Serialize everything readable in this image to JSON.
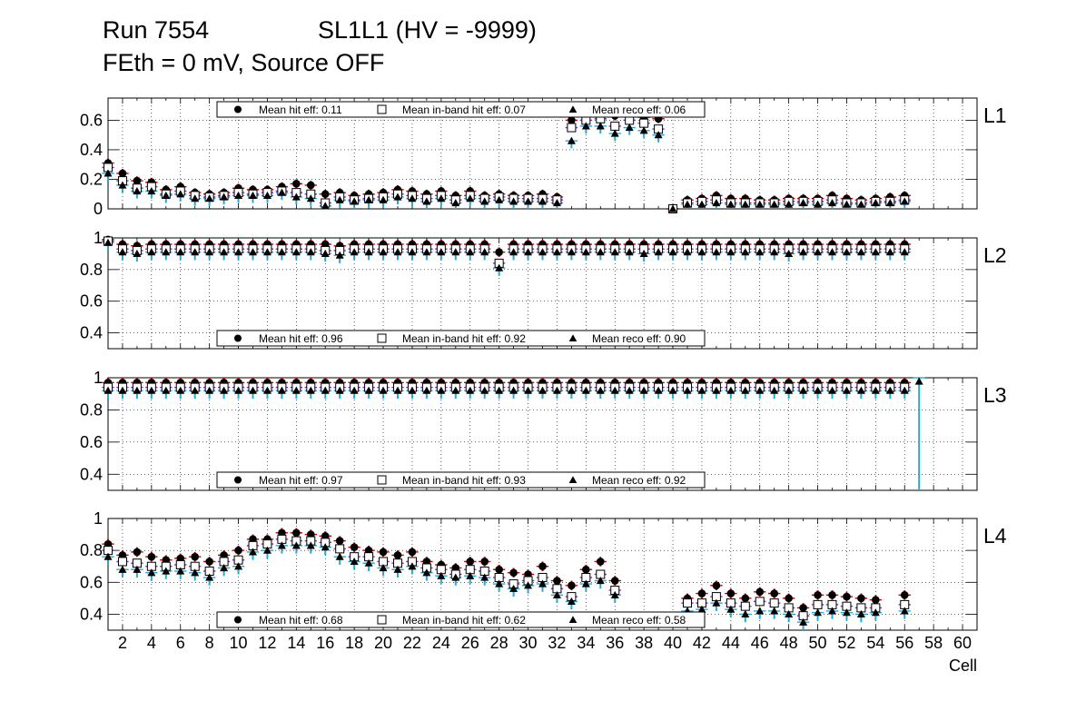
{
  "title": {
    "run": "Run 7554",
    "sl": "SL1L1 (HV = -9999)",
    "line2": "FEth = 0 mV, Source OFF"
  },
  "colors": {
    "hit_error": "#cc0000",
    "inband_error": "#7733cc",
    "reco_error": "#22aadd",
    "marker": "#000000",
    "grid": "#000000"
  },
  "chart_data": {
    "type": "scatter",
    "xlabel": "Cell",
    "xlim": [
      1,
      61
    ],
    "xticks": [
      2,
      4,
      6,
      8,
      10,
      12,
      14,
      16,
      18,
      20,
      22,
      24,
      26,
      28,
      30,
      32,
      34,
      36,
      38,
      40,
      42,
      44,
      46,
      48,
      50,
      52,
      54,
      56,
      58,
      60
    ],
    "series_names": [
      "Mean hit  eff",
      "Mean in-band hit eff",
      "Mean reco eff"
    ],
    "panels": [
      {
        "layer": "L1",
        "ylim": [
          0,
          0.75
        ],
        "yticks": [
          {
            "v": 0,
            "label": "0"
          },
          {
            "v": 0.2,
            "label": "0.2"
          },
          {
            "v": 0.4,
            "label": "0.4"
          },
          {
            "v": 0.6,
            "label": "0.6"
          }
        ],
        "legend_pos": "top",
        "legend": [
          "Mean hit  eff: 0.11",
          "Mean in-band hit eff: 0.07",
          "Mean reco eff: 0.06"
        ],
        "cells": [
          1,
          2,
          3,
          4,
          5,
          6,
          7,
          8,
          9,
          10,
          11,
          12,
          13,
          14,
          15,
          16,
          17,
          18,
          19,
          20,
          21,
          22,
          23,
          24,
          25,
          26,
          27,
          28,
          29,
          30,
          31,
          32,
          33,
          34,
          35,
          36,
          37,
          38,
          39,
          40,
          41,
          42,
          43,
          44,
          45,
          46,
          47,
          48,
          49,
          50,
          51,
          52,
          53,
          54,
          55,
          56
        ],
        "hit": [
          0.31,
          0.24,
          0.19,
          0.18,
          0.13,
          0.15,
          0.11,
          0.1,
          0.11,
          0.14,
          0.13,
          0.13,
          0.15,
          0.17,
          0.16,
          0.1,
          0.11,
          0.09,
          0.1,
          0.11,
          0.13,
          0.12,
          0.1,
          0.12,
          0.09,
          0.12,
          0.09,
          0.1,
          0.09,
          0.09,
          0.1,
          0.08,
          0.6,
          0.63,
          0.64,
          0.63,
          0.64,
          0.62,
          0.61,
          0.0,
          0.06,
          0.07,
          0.09,
          0.07,
          0.07,
          0.06,
          0.06,
          0.07,
          0.07,
          0.07,
          0.09,
          0.07,
          0.06,
          0.07,
          0.08,
          0.09
        ],
        "inband": [
          0.28,
          0.19,
          0.14,
          0.15,
          0.1,
          0.12,
          0.09,
          0.08,
          0.09,
          0.11,
          0.1,
          0.11,
          0.12,
          0.11,
          0.1,
          0.04,
          0.08,
          0.06,
          0.07,
          0.08,
          0.1,
          0.09,
          0.07,
          0.09,
          0.06,
          0.09,
          0.07,
          0.08,
          0.07,
          0.07,
          0.07,
          0.06,
          0.55,
          0.6,
          0.61,
          0.56,
          0.6,
          0.58,
          0.54,
          0.0,
          0.04,
          0.05,
          0.06,
          0.04,
          0.04,
          0.04,
          0.04,
          0.05,
          0.05,
          0.05,
          0.06,
          0.04,
          0.04,
          0.05,
          0.05,
          0.06
        ],
        "reco": [
          0.24,
          0.16,
          0.12,
          0.12,
          0.09,
          0.1,
          0.07,
          0.07,
          0.08,
          0.09,
          0.09,
          0.09,
          0.11,
          0.08,
          0.07,
          0.02,
          0.06,
          0.05,
          0.06,
          0.06,
          0.08,
          0.07,
          0.05,
          0.07,
          0.04,
          0.07,
          0.05,
          0.06,
          0.05,
          0.05,
          0.05,
          0.04,
          0.46,
          0.56,
          0.56,
          0.51,
          0.55,
          0.53,
          0.5,
          0.0,
          0.03,
          0.03,
          0.04,
          0.03,
          0.03,
          0.03,
          0.03,
          0.03,
          0.04,
          0.03,
          0.04,
          0.03,
          0.03,
          0.04,
          0.04,
          0.05
        ]
      },
      {
        "layer": "L2",
        "ylim": [
          0.3,
          1.0
        ],
        "yticks": [
          {
            "v": 0.4,
            "label": "0.4"
          },
          {
            "v": 0.6,
            "label": "0.6"
          },
          {
            "v": 0.8,
            "label": "0.8"
          },
          {
            "v": 1.0,
            "label": "1"
          }
        ],
        "legend_pos": "bottom",
        "legend": [
          "Mean hit  eff: 0.96",
          "Mean in-band hit eff: 0.92",
          "Mean reco eff: 0.90"
        ],
        "cells": [
          1,
          2,
          3,
          4,
          5,
          6,
          7,
          8,
          9,
          10,
          11,
          12,
          13,
          14,
          15,
          16,
          17,
          18,
          19,
          20,
          21,
          22,
          23,
          24,
          25,
          26,
          27,
          28,
          29,
          30,
          31,
          32,
          33,
          34,
          35,
          36,
          37,
          38,
          39,
          40,
          41,
          42,
          43,
          44,
          45,
          46,
          47,
          48,
          49,
          50,
          51,
          52,
          53,
          54,
          55,
          56
        ],
        "hit": [
          0.99,
          0.96,
          0.95,
          0.96,
          0.96,
          0.96,
          0.96,
          0.96,
          0.96,
          0.96,
          0.96,
          0.96,
          0.96,
          0.96,
          0.96,
          0.96,
          0.95,
          0.96,
          0.96,
          0.96,
          0.96,
          0.96,
          0.96,
          0.96,
          0.96,
          0.96,
          0.96,
          0.91,
          0.96,
          0.96,
          0.96,
          0.96,
          0.96,
          0.96,
          0.96,
          0.96,
          0.96,
          0.96,
          0.96,
          0.96,
          0.96,
          0.96,
          0.96,
          0.96,
          0.96,
          0.96,
          0.96,
          0.96,
          0.96,
          0.96,
          0.96,
          0.96,
          0.96,
          0.96,
          0.96,
          0.96
        ],
        "inband": [
          0.98,
          0.93,
          0.92,
          0.93,
          0.93,
          0.93,
          0.93,
          0.93,
          0.93,
          0.93,
          0.93,
          0.93,
          0.93,
          0.93,
          0.93,
          0.92,
          0.92,
          0.93,
          0.93,
          0.93,
          0.93,
          0.93,
          0.93,
          0.93,
          0.93,
          0.93,
          0.93,
          0.84,
          0.93,
          0.93,
          0.93,
          0.93,
          0.93,
          0.93,
          0.93,
          0.93,
          0.93,
          0.93,
          0.93,
          0.93,
          0.93,
          0.93,
          0.93,
          0.93,
          0.93,
          0.93,
          0.93,
          0.93,
          0.93,
          0.93,
          0.93,
          0.93,
          0.93,
          0.93,
          0.93,
          0.93
        ],
        "reco": [
          0.97,
          0.91,
          0.9,
          0.91,
          0.91,
          0.91,
          0.91,
          0.91,
          0.91,
          0.91,
          0.91,
          0.91,
          0.91,
          0.91,
          0.91,
          0.9,
          0.89,
          0.91,
          0.91,
          0.91,
          0.91,
          0.91,
          0.91,
          0.91,
          0.91,
          0.91,
          0.91,
          0.81,
          0.91,
          0.91,
          0.91,
          0.91,
          0.91,
          0.91,
          0.91,
          0.91,
          0.91,
          0.9,
          0.91,
          0.91,
          0.91,
          0.91,
          0.91,
          0.91,
          0.91,
          0.91,
          0.91,
          0.9,
          0.91,
          0.91,
          0.91,
          0.91,
          0.91,
          0.91,
          0.91,
          0.91
        ]
      },
      {
        "layer": "L3",
        "ylim": [
          0.3,
          1.0
        ],
        "yticks": [
          {
            "v": 0.4,
            "label": "0.4"
          },
          {
            "v": 0.6,
            "label": "0.6"
          },
          {
            "v": 0.8,
            "label": "0.8"
          },
          {
            "v": 1.0,
            "label": "1"
          }
        ],
        "legend_pos": "bottom",
        "legend": [
          "Mean hit  eff: 0.97",
          "Mean in-band hit eff: 0.93",
          "Mean reco eff: 0.92"
        ],
        "cells": [
          1,
          2,
          3,
          4,
          5,
          6,
          7,
          8,
          9,
          10,
          11,
          12,
          13,
          14,
          15,
          16,
          17,
          18,
          19,
          20,
          21,
          22,
          23,
          24,
          25,
          26,
          27,
          28,
          29,
          30,
          31,
          32,
          33,
          34,
          35,
          36,
          37,
          38,
          39,
          40,
          41,
          42,
          43,
          44,
          45,
          46,
          47,
          48,
          49,
          50,
          51,
          52,
          53,
          54,
          55,
          56,
          57
        ],
        "hit": [
          0.97,
          0.97,
          0.97,
          0.97,
          0.97,
          0.97,
          0.97,
          0.97,
          0.97,
          0.97,
          0.97,
          0.97,
          0.97,
          0.97,
          0.97,
          0.97,
          0.97,
          0.97,
          0.97,
          0.97,
          0.97,
          0.97,
          0.97,
          0.97,
          0.97,
          0.97,
          0.97,
          0.97,
          0.97,
          0.97,
          0.97,
          0.97,
          0.97,
          0.97,
          0.97,
          0.97,
          0.97,
          0.97,
          0.97,
          0.97,
          0.97,
          0.97,
          0.97,
          0.97,
          0.97,
          0.97,
          0.97,
          0.97,
          0.97,
          0.97,
          0.97,
          0.97,
          0.97,
          0.97,
          0.97,
          0.97,
          null
        ],
        "inband": [
          0.94,
          0.94,
          0.94,
          0.94,
          0.94,
          0.94,
          0.94,
          0.94,
          0.94,
          0.94,
          0.94,
          0.94,
          0.94,
          0.94,
          0.94,
          0.94,
          0.94,
          0.94,
          0.94,
          0.94,
          0.94,
          0.94,
          0.94,
          0.94,
          0.94,
          0.94,
          0.94,
          0.94,
          0.94,
          0.94,
          0.94,
          0.94,
          0.94,
          0.94,
          0.94,
          0.94,
          0.94,
          0.94,
          0.94,
          0.94,
          0.94,
          0.94,
          0.94,
          0.94,
          0.94,
          0.94,
          0.94,
          0.94,
          0.94,
          0.94,
          0.94,
          0.94,
          0.94,
          0.94,
          0.94,
          0.94,
          null
        ],
        "reco": [
          0.92,
          0.92,
          0.92,
          0.92,
          0.92,
          0.92,
          0.92,
          0.92,
          0.92,
          0.92,
          0.92,
          0.92,
          0.92,
          0.92,
          0.92,
          0.92,
          0.92,
          0.92,
          0.92,
          0.92,
          0.92,
          0.92,
          0.92,
          0.92,
          0.92,
          0.92,
          0.92,
          0.92,
          0.92,
          0.92,
          0.92,
          0.92,
          0.92,
          0.92,
          0.92,
          0.92,
          0.92,
          0.92,
          0.92,
          0.92,
          0.92,
          0.92,
          0.92,
          0.92,
          0.92,
          0.92,
          0.92,
          0.92,
          0.92,
          0.92,
          0.92,
          0.92,
          0.92,
          0.92,
          0.92,
          0.92,
          1.0
        ]
      },
      {
        "layer": "L4",
        "ylim": [
          0.3,
          1.0
        ],
        "yticks": [
          {
            "v": 0.4,
            "label": "0.4"
          },
          {
            "v": 0.6,
            "label": "0.6"
          },
          {
            "v": 0.8,
            "label": "0.8"
          },
          {
            "v": 1.0,
            "label": "1"
          }
        ],
        "legend_pos": "bottom",
        "legend": [
          "Mean hit  eff: 0.68",
          "Mean in-band hit eff: 0.62",
          "Mean reco eff: 0.58"
        ],
        "cells": [
          1,
          2,
          3,
          4,
          5,
          6,
          7,
          8,
          9,
          10,
          11,
          12,
          13,
          14,
          15,
          16,
          17,
          18,
          19,
          20,
          21,
          22,
          23,
          24,
          25,
          26,
          27,
          28,
          29,
          30,
          31,
          32,
          33,
          34,
          35,
          36,
          37,
          38,
          39,
          40,
          41,
          42,
          43,
          44,
          45,
          46,
          47,
          48,
          49,
          50,
          51,
          52,
          53,
          54,
          55,
          56
        ],
        "hit": [
          0.84,
          0.77,
          0.79,
          0.76,
          0.74,
          0.75,
          0.76,
          0.73,
          0.77,
          0.8,
          0.87,
          0.87,
          0.91,
          0.91,
          0.9,
          0.89,
          0.86,
          0.82,
          0.8,
          0.79,
          0.77,
          0.79,
          0.73,
          0.71,
          0.69,
          0.73,
          0.73,
          0.68,
          0.66,
          0.65,
          0.7,
          0.61,
          0.58,
          0.68,
          0.73,
          0.61,
          null,
          null,
          null,
          null,
          0.5,
          0.53,
          0.58,
          0.53,
          0.5,
          0.54,
          0.53,
          0.5,
          0.44,
          0.52,
          0.52,
          0.51,
          0.5,
          0.49,
          null,
          0.52
        ],
        "inband": [
          0.8,
          0.73,
          0.72,
          0.7,
          0.7,
          0.71,
          0.7,
          0.67,
          0.73,
          0.74,
          0.83,
          0.84,
          0.87,
          0.86,
          0.86,
          0.85,
          0.81,
          0.76,
          0.76,
          0.73,
          0.72,
          0.73,
          0.69,
          0.68,
          0.65,
          0.68,
          0.67,
          0.63,
          0.59,
          0.61,
          0.63,
          0.56,
          0.51,
          0.63,
          0.65,
          0.55,
          null,
          null,
          null,
          null,
          0.47,
          0.47,
          0.51,
          0.47,
          0.45,
          0.48,
          0.47,
          0.44,
          0.39,
          0.46,
          0.46,
          0.45,
          0.44,
          0.44,
          null,
          0.46
        ],
        "reco": [
          0.76,
          0.68,
          0.68,
          0.66,
          0.67,
          0.67,
          0.66,
          0.63,
          0.69,
          0.7,
          0.79,
          0.8,
          0.83,
          0.83,
          0.83,
          0.82,
          0.76,
          0.73,
          0.72,
          0.69,
          0.68,
          0.7,
          0.66,
          0.64,
          0.63,
          0.64,
          0.63,
          0.59,
          0.56,
          0.58,
          0.59,
          0.52,
          0.48,
          0.59,
          0.61,
          0.52,
          null,
          null,
          null,
          null,
          0.42,
          0.43,
          0.47,
          0.43,
          0.4,
          0.42,
          0.42,
          0.4,
          0.35,
          0.41,
          0.42,
          0.41,
          0.4,
          0.41,
          null,
          0.42
        ]
      }
    ]
  }
}
